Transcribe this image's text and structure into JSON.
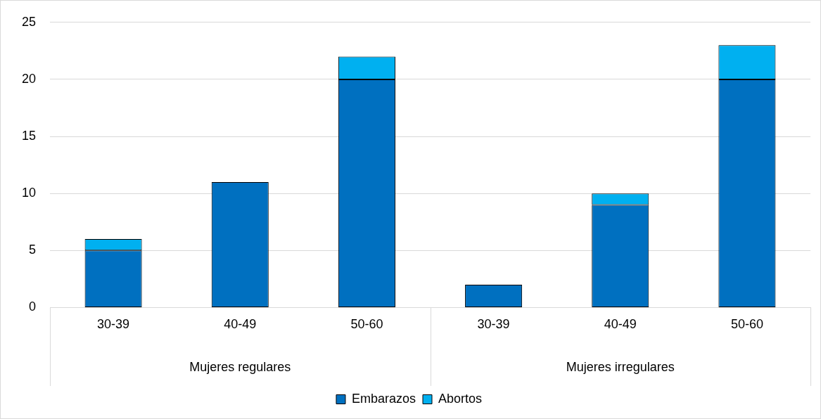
{
  "chart_data": {
    "type": "bar",
    "stacked": true,
    "categories": [
      "30-39",
      "40-49",
      "50-60",
      "30-39",
      "40-49",
      "50-60"
    ],
    "series": [
      {
        "name": "Embarazos",
        "color": "#0070c0",
        "values": [
          5,
          11,
          20,
          2,
          9,
          20
        ]
      },
      {
        "name": "Abortos",
        "color": "#00b0f0",
        "values": [
          1,
          0,
          2,
          0,
          1,
          3
        ]
      }
    ],
    "ylim": [
      0,
      25
    ],
    "yticks": [
      0,
      5,
      10,
      15,
      20,
      25
    ],
    "grid": "y",
    "legend": "bottom",
    "annotations": [
      "Mujeres regulares",
      "Mujeres irregulares"
    ]
  }
}
